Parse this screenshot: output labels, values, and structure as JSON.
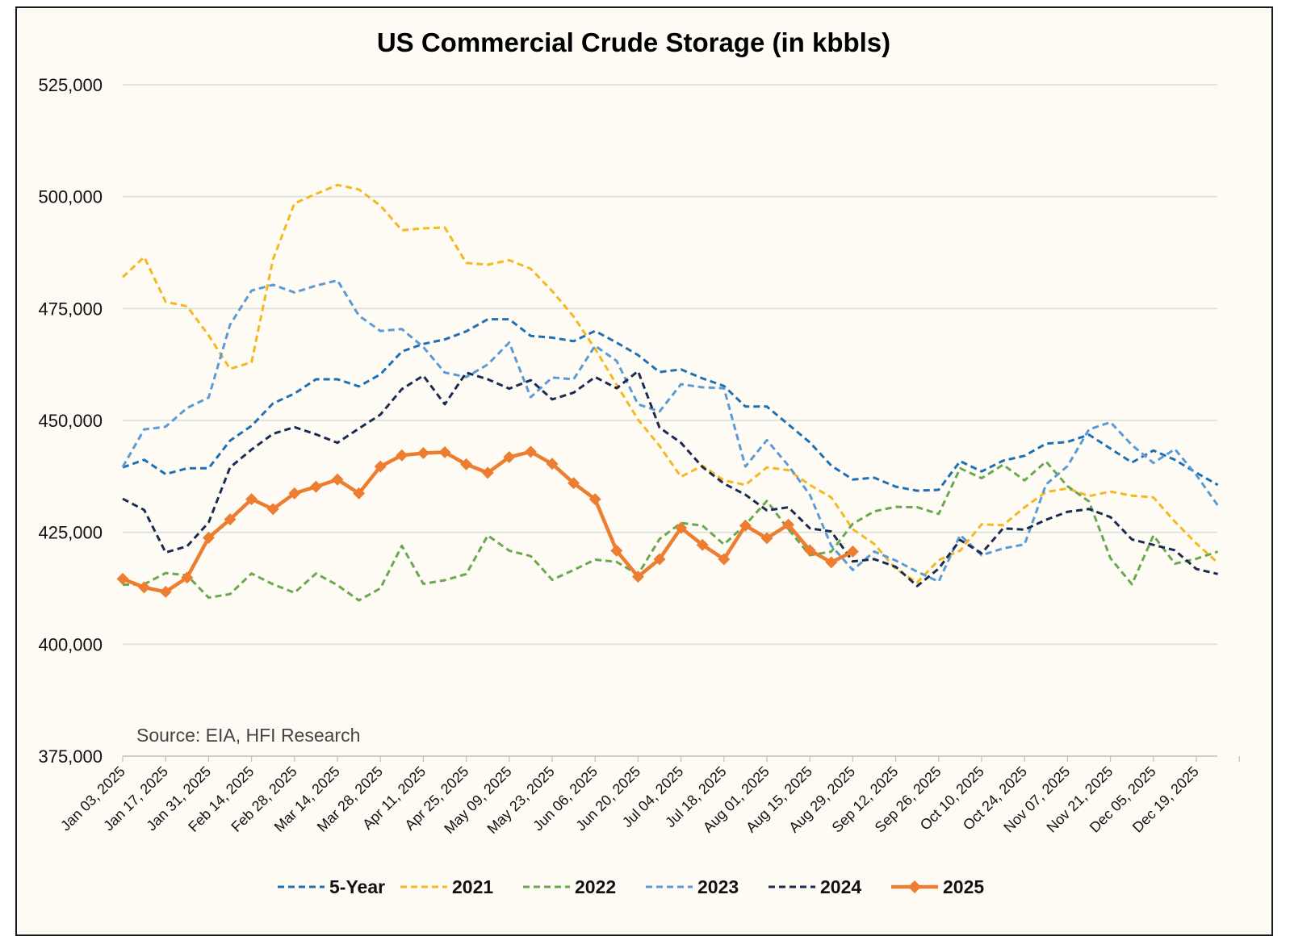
{
  "chart_data": {
    "type": "line",
    "title": "US Commercial Crude Storage (in kbbls)",
    "source_note": "Source: EIA, HFI Research",
    "xlabel": "",
    "ylabel": "",
    "ylim": [
      375000,
      525000
    ],
    "y_ticks": [
      375000,
      400000,
      425000,
      450000,
      475000,
      500000,
      525000
    ],
    "y_tick_labels": [
      "375,000",
      "400,000",
      "425,000",
      "450,000",
      "475,000",
      "500,000",
      "525,000"
    ],
    "x_tick_labels": [
      "Jan 03, 2025",
      "Jan 17, 2025",
      "Jan 31, 2025",
      "Feb 14, 2025",
      "Feb 28, 2025",
      "Mar 14, 2025",
      "Mar 28, 2025",
      "Apr 11, 2025",
      "Apr 25, 2025",
      "May 09, 2025",
      "May 23, 2025",
      "Jun 06, 2025",
      "Jun 20, 2025",
      "Jul 04, 2025",
      "Jul 18, 2025",
      "Aug 01, 2025",
      "Aug 15, 2025",
      "Aug 29, 2025",
      "Sep 12, 2025",
      "Sep 26, 2025",
      "Oct 10, 2025",
      "Oct 24, 2025",
      "Nov 07, 2025",
      "Nov 21, 2025",
      "Dec 05, 2025",
      "Dec 19, 2025"
    ],
    "week_count": 52,
    "grid": true,
    "legend_position": "bottom",
    "series": [
      {
        "name": "5-Year",
        "color": "#1f6fb5",
        "style": "dashed",
        "values": [
          439500,
          441200,
          438000,
          439300,
          439300,
          445500,
          448800,
          453800,
          456000,
          459200,
          459200,
          457600,
          460300,
          465400,
          467100,
          468100,
          469900,
          472600,
          472600,
          468900,
          468500,
          467700,
          470000,
          467400,
          464600,
          460800,
          461400,
          459400,
          457700,
          453100,
          453100,
          449100,
          445100,
          439900,
          436800,
          437200,
          435200,
          434300,
          434500,
          440900,
          438600,
          441000,
          442100,
          444800,
          445200,
          446800,
          443700,
          440600,
          443300,
          441200,
          438300,
          435600
        ]
      },
      {
        "name": "2021",
        "color": "#f5b820",
        "style": "dashed",
        "values": [
          482000,
          486500,
          476500,
          475500,
          469000,
          461500,
          463000,
          486000,
          498500,
          500600,
          502600,
          501600,
          498000,
          492500,
          492900,
          493100,
          485200,
          484800,
          485800,
          483900,
          478900,
          473200,
          466000,
          458000,
          450200,
          444300,
          437400,
          439900,
          436600,
          435600,
          439500,
          438900,
          435600,
          432800,
          425700,
          422400,
          416800,
          413800,
          418800,
          420900,
          426800,
          426600,
          430600,
          434000,
          434800,
          433100,
          434100,
          433200,
          432800,
          427400,
          422500,
          418200
        ]
      },
      {
        "name": "2022",
        "color": "#6aa84f",
        "style": "dashed",
        "values": [
          413300,
          413400,
          415900,
          415400,
          410400,
          411200,
          415800,
          413400,
          411500,
          415800,
          413200,
          409800,
          412500,
          422000,
          413500,
          414300,
          415700,
          424300,
          420900,
          419700,
          414400,
          416600,
          418900,
          418400,
          415600,
          423500,
          427100,
          426500,
          422300,
          426700,
          432000,
          425700,
          419900,
          420700,
          426900,
          429700,
          430700,
          430600,
          429100,
          439300,
          437100,
          440100,
          436600,
          440800,
          435300,
          431900,
          419200,
          413400,
          424300,
          418000,
          419100,
          420700
        ]
      },
      {
        "name": "2023",
        "color": "#5b9bd5",
        "style": "dashed",
        "values": [
          439600,
          448000,
          448600,
          452800,
          455100,
          471400,
          479000,
          480300,
          478600,
          480100,
          481300,
          473400,
          470000,
          470400,
          466400,
          460700,
          459700,
          462500,
          467400,
          455200,
          459600,
          459200,
          466700,
          463300,
          453600,
          452000,
          458100,
          457400,
          457200,
          439700,
          445600,
          439900,
          433400,
          422000,
          416600,
          420700,
          418700,
          416200,
          414000,
          424400,
          419900,
          421400,
          422300,
          435700,
          439800,
          448000,
          449600,
          444500,
          440500,
          443600,
          437800,
          431000
        ]
      },
      {
        "name": "2024",
        "color": "#1b2a52",
        "style": "dashed",
        "values": [
          432500,
          430000,
          420500,
          421900,
          427200,
          439500,
          443500,
          447000,
          448500,
          446900,
          445000,
          448200,
          451300,
          457000,
          460000,
          453600,
          460700,
          459200,
          457100,
          459000,
          454700,
          456200,
          459700,
          457200,
          461000,
          448400,
          445000,
          439600,
          435900,
          433400,
          429900,
          430600,
          425900,
          425200,
          418500,
          419000,
          417300,
          413000,
          416900,
          423300,
          420300,
          425900,
          425600,
          427800,
          429600,
          430200,
          428400,
          423400,
          422200,
          421000,
          416800,
          415700
        ]
      },
      {
        "name": "2025",
        "color": "#ed7d31",
        "style": "solid",
        "values": [
          414600,
          412700,
          411700,
          414900,
          423800,
          427900,
          432400,
          430200,
          433700,
          435200,
          436800,
          433700,
          439700,
          442200,
          442700,
          442900,
          440200,
          438300,
          441800,
          443000,
          440300,
          436000,
          432400,
          420900,
          415100,
          419000,
          426000,
          422200,
          419000,
          426500,
          423700,
          426700,
          421000,
          418300,
          420700
        ]
      }
    ]
  }
}
